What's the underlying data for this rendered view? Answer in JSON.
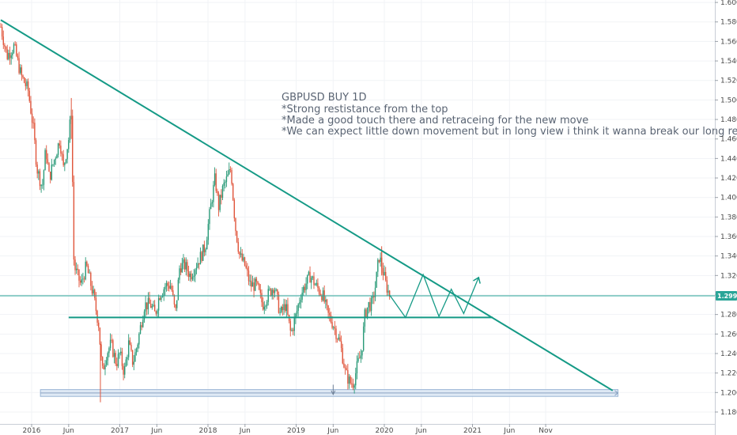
{
  "chart_data": {
    "type": "line",
    "symbol": "GBPUSD",
    "timeframe": "1D",
    "ylim": [
      1.17,
      1.61
    ],
    "y_ticks": [
      "1.60000",
      "1.58000",
      "1.56000",
      "1.54000",
      "1.52000",
      "1.50000",
      "1.48000",
      "1.46000",
      "1.44000",
      "1.42000",
      "1.40000",
      "1.38000",
      "1.36000",
      "1.34000",
      "1.32000",
      "1.30000",
      "1.28000",
      "1.26000",
      "1.24000",
      "1.22000",
      "1.20000",
      "1.18000"
    ],
    "x_ticks": [
      "2016",
      "Jun",
      "2017",
      "Jun",
      "2018",
      "Jun",
      "2019",
      "Jun",
      "2020",
      "Jun",
      "2021",
      "Jun",
      "Nov"
    ],
    "x_tick_years": [
      2016.0,
      2016.42,
      2017.0,
      2017.42,
      2018.0,
      2018.42,
      2019.0,
      2019.42,
      2020.0,
      2020.42,
      2021.0,
      2021.42,
      2021.83
    ],
    "last_price": "1.29919",
    "price_series": [
      [
        2015.65,
        1.575
      ],
      [
        2015.72,
        1.545
      ],
      [
        2015.8,
        1.555
      ],
      [
        2015.88,
        1.525
      ],
      [
        2015.96,
        1.51
      ],
      [
        2016.02,
        1.47
      ],
      [
        2016.06,
        1.43
      ],
      [
        2016.12,
        1.41
      ],
      [
        2016.16,
        1.45
      ],
      [
        2016.2,
        1.42
      ],
      [
        2016.26,
        1.44
      ],
      [
        2016.32,
        1.46
      ],
      [
        2016.36,
        1.43
      ],
      [
        2016.42,
        1.46
      ],
      [
        2016.45,
        1.49
      ],
      [
        2016.48,
        1.33
      ],
      [
        2016.52,
        1.32
      ],
      [
        2016.56,
        1.31
      ],
      [
        2016.62,
        1.33
      ],
      [
        2016.7,
        1.3
      ],
      [
        2016.76,
        1.27
      ],
      [
        2016.8,
        1.22
      ],
      [
        2016.85,
        1.24
      ],
      [
        2016.9,
        1.25
      ],
      [
        2016.96,
        1.23
      ],
      [
        2017.0,
        1.24
      ],
      [
        2017.05,
        1.22
      ],
      [
        2017.1,
        1.25
      ],
      [
        2017.15,
        1.23
      ],
      [
        2017.2,
        1.25
      ],
      [
        2017.28,
        1.29
      ],
      [
        2017.35,
        1.29
      ],
      [
        2017.4,
        1.28
      ],
      [
        2017.45,
        1.3
      ],
      [
        2017.52,
        1.31
      ],
      [
        2017.58,
        1.31
      ],
      [
        2017.63,
        1.28
      ],
      [
        2017.68,
        1.33
      ],
      [
        2017.74,
        1.33
      ],
      [
        2017.8,
        1.32
      ],
      [
        2017.86,
        1.33
      ],
      [
        2017.92,
        1.34
      ],
      [
        2017.97,
        1.35
      ],
      [
        2018.03,
        1.39
      ],
      [
        2018.08,
        1.42
      ],
      [
        2018.12,
        1.39
      ],
      [
        2018.17,
        1.41
      ],
      [
        2018.22,
        1.42
      ],
      [
        2018.26,
        1.43
      ],
      [
        2018.31,
        1.37
      ],
      [
        2018.36,
        1.34
      ],
      [
        2018.42,
        1.33
      ],
      [
        2018.48,
        1.31
      ],
      [
        2018.55,
        1.31
      ],
      [
        2018.62,
        1.29
      ],
      [
        2018.68,
        1.3
      ],
      [
        2018.75,
        1.31
      ],
      [
        2018.82,
        1.28
      ],
      [
        2018.88,
        1.29
      ],
      [
        2018.94,
        1.26
      ],
      [
        2019.0,
        1.28
      ],
      [
        2019.05,
        1.3
      ],
      [
        2019.1,
        1.31
      ],
      [
        2019.16,
        1.32
      ],
      [
        2019.22,
        1.31
      ],
      [
        2019.3,
        1.3
      ],
      [
        2019.36,
        1.28
      ],
      [
        2019.42,
        1.27
      ],
      [
        2019.5,
        1.25
      ],
      [
        2019.56,
        1.22
      ],
      [
        2019.61,
        1.21
      ],
      [
        2019.65,
        1.21
      ],
      [
        2019.7,
        1.23
      ],
      [
        2019.74,
        1.24
      ],
      [
        2019.78,
        1.28
      ],
      [
        2019.82,
        1.29
      ],
      [
        2019.86,
        1.29
      ],
      [
        2019.9,
        1.31
      ],
      [
        2019.94,
        1.34
      ],
      [
        2019.97,
        1.33
      ],
      [
        2020.02,
        1.31
      ],
      [
        2020.06,
        1.3
      ]
    ],
    "projection": [
      [
        2020.06,
        1.3
      ],
      [
        2020.24,
        1.277
      ],
      [
        2020.44,
        1.321
      ],
      [
        2020.62,
        1.278
      ],
      [
        2020.76,
        1.306
      ],
      [
        2020.9,
        1.281
      ],
      [
        2021.07,
        1.318
      ]
    ],
    "resistance_line": [
      [
        2015.65,
        1.582
      ],
      [
        2022.59,
        1.202
      ]
    ],
    "support_line": [
      [
        2016.42,
        1.277
      ],
      [
        2021.23,
        1.277
      ]
    ],
    "base_zone": {
      "start": 2016.1,
      "end": 2022.65,
      "low": 1.196,
      "high": 1.203
    },
    "annotation": {
      "title": "GBPUSD BUY 1D",
      "lines": [
        "*Strong restistance from the top",
        "*Made a good touch there and retraceing for the new move",
        "*We can expect little down movement but in long view i think it wanna break our long restistance"
      ]
    },
    "colors": {
      "line": "#159a86",
      "up": "#2a9a78",
      "down": "#e0563c",
      "price_line": "#2aa598",
      "zone": "#d7e4f2",
      "zone_border": "#9bb6d6",
      "grid": "#f1f3f6"
    }
  }
}
